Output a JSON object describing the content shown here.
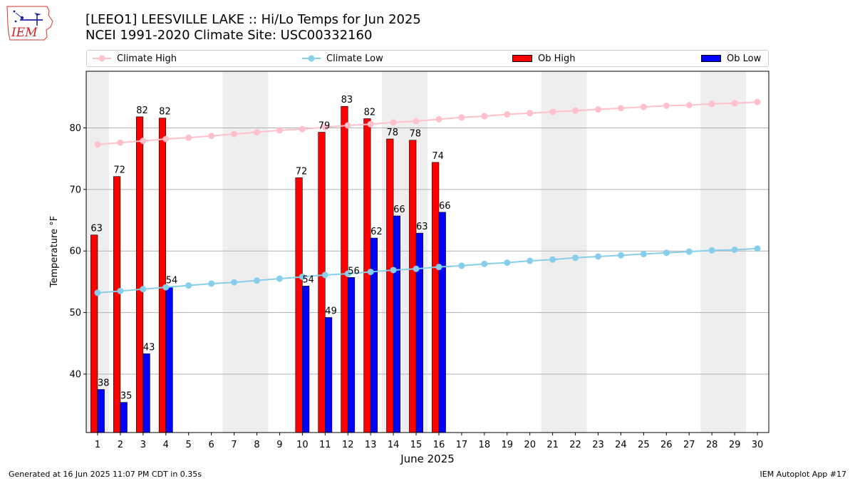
{
  "header": {
    "title_line1": "[LEEO1] LEESVILLE LAKE :: Hi/Lo Temps for Jun 2025",
    "title_line2": "NCEI 1991-2020 Climate Site: USC00332160",
    "logo_text": "IEM"
  },
  "legend": {
    "climate_high": "Climate High",
    "climate_low": "Climate Low",
    "ob_high": "Ob High",
    "ob_low": "Ob Low",
    "placement": "top, outside plot"
  },
  "footer": {
    "left": "Generated at 16 Jun 2025 11:07 PM CDT in 0.35s",
    "right": "IEM Autoplot App #17"
  },
  "colors": {
    "climate_high": "#ffc0cb",
    "climate_low": "#87ceeb",
    "ob_high": "#ff0000",
    "ob_low": "#0000ff",
    "weekend_band": "#eeeeee",
    "grid": "#b0b0b0"
  },
  "chart_data": {
    "type": "bar",
    "xlabel": "June 2025",
    "ylabel": "Temperature °F",
    "x": [
      1,
      2,
      3,
      4,
      5,
      6,
      7,
      8,
      9,
      10,
      11,
      12,
      13,
      14,
      15,
      16,
      17,
      18,
      19,
      20,
      21,
      22,
      23,
      24,
      25,
      26,
      27,
      28,
      29,
      30
    ],
    "ylim": [
      30.5,
      89.2
    ],
    "yticks": [
      40,
      50,
      60,
      70,
      80
    ],
    "grid": "horizontal",
    "weekend_days": [
      1,
      7,
      8,
      14,
      15,
      21,
      22,
      28,
      29
    ],
    "series": [
      {
        "name": "Ob High",
        "type": "bar",
        "values": [
          62.6,
          72.1,
          81.8,
          81.6,
          null,
          null,
          null,
          null,
          null,
          71.9,
          79.3,
          83.5,
          81.5,
          78.2,
          78.0,
          74.4,
          null,
          null,
          null,
          null,
          null,
          null,
          null,
          null,
          null,
          null,
          null,
          null,
          null,
          null
        ],
        "labels": [
          "63",
          "72",
          "82",
          "82",
          "",
          "",
          "",
          "",
          "",
          "72",
          "79",
          "83",
          "82",
          "78",
          "78",
          "74",
          "",
          "",
          "",
          "",
          "",
          "",
          "",
          "",
          "",
          "",
          "",
          "",
          "",
          ""
        ]
      },
      {
        "name": "Ob Low",
        "type": "bar",
        "values": [
          37.5,
          35.4,
          43.3,
          54.2,
          null,
          null,
          null,
          null,
          null,
          54.3,
          49.2,
          55.7,
          62.1,
          65.7,
          62.9,
          66.3,
          null,
          null,
          null,
          null,
          null,
          null,
          null,
          null,
          null,
          null,
          null,
          null,
          null,
          null
        ],
        "labels": [
          "38",
          "35",
          "43",
          "54",
          "",
          "",
          "",
          "",
          "",
          "54",
          "49",
          "56",
          "62",
          "66",
          "63",
          "66",
          "",
          "",
          "",
          "",
          "",
          "",
          "",
          "",
          "",
          "",
          "",
          "",
          "",
          ""
        ]
      },
      {
        "name": "Climate High",
        "type": "line",
        "values": [
          77.3,
          77.6,
          77.9,
          78.2,
          78.4,
          78.7,
          79.0,
          79.3,
          79.6,
          79.8,
          80.1,
          80.4,
          80.6,
          80.9,
          81.1,
          81.4,
          81.7,
          81.9,
          82.2,
          82.4,
          82.6,
          82.8,
          83.0,
          83.2,
          83.4,
          83.6,
          83.7,
          83.9,
          84.0,
          84.2
        ]
      },
      {
        "name": "Climate Low",
        "type": "line",
        "values": [
          53.2,
          53.5,
          53.8,
          54.1,
          54.4,
          54.7,
          54.9,
          55.2,
          55.5,
          55.8,
          56.1,
          56.3,
          56.6,
          56.9,
          57.1,
          57.4,
          57.6,
          57.9,
          58.1,
          58.4,
          58.6,
          58.9,
          59.1,
          59.3,
          59.5,
          59.7,
          59.9,
          60.1,
          60.2,
          60.4
        ]
      }
    ]
  }
}
